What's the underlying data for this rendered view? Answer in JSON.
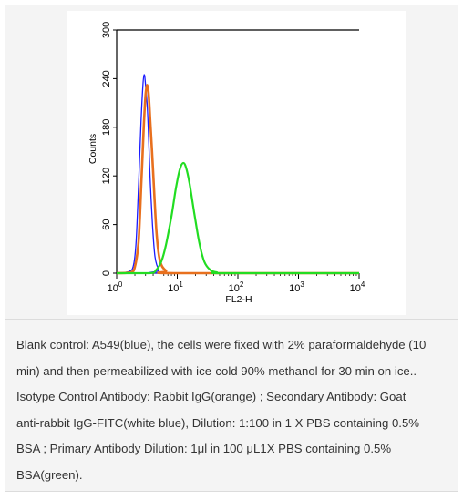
{
  "chart_data": {
    "type": "line",
    "xlabel": "FL2-H",
    "ylabel": "Counts",
    "x_scale": "log",
    "xlim": [
      1,
      10000
    ],
    "ylim": [
      0,
      300
    ],
    "x_ticks": [
      {
        "value": 1,
        "base": "10",
        "exp": "0"
      },
      {
        "value": 10,
        "base": "10",
        "exp": "1"
      },
      {
        "value": 100,
        "base": "10",
        "exp": "2"
      },
      {
        "value": 1000,
        "base": "10",
        "exp": "3"
      },
      {
        "value": 10000,
        "base": "10",
        "exp": "4"
      }
    ],
    "y_ticks": [
      "0",
      "60",
      "120",
      "180",
      "240",
      "300"
    ],
    "series": [
      {
        "color": "#1a1aff",
        "points": [
          [
            1,
            0
          ],
          [
            1.6,
            2
          ],
          [
            1.9,
            10
          ],
          [
            2.1,
            40
          ],
          [
            2.3,
            110
          ],
          [
            2.5,
            180
          ],
          [
            2.7,
            230
          ],
          [
            2.85,
            245
          ],
          [
            3.0,
            232
          ],
          [
            3.2,
            205
          ],
          [
            3.4,
            160
          ],
          [
            3.6,
            110
          ],
          [
            3.9,
            60
          ],
          [
            4.3,
            20
          ],
          [
            5.0,
            4
          ],
          [
            6.5,
            0
          ],
          [
            10000,
            0
          ]
        ]
      },
      {
        "color": "#e8701e",
        "points": [
          [
            1,
            0
          ],
          [
            1.7,
            1
          ],
          [
            2.0,
            8
          ],
          [
            2.3,
            40
          ],
          [
            2.55,
            110
          ],
          [
            2.8,
            180
          ],
          [
            3.0,
            220
          ],
          [
            3.2,
            232
          ],
          [
            3.4,
            218
          ],
          [
            3.6,
            185
          ],
          [
            3.9,
            140
          ],
          [
            4.2,
            95
          ],
          [
            4.6,
            45
          ],
          [
            5.2,
            15
          ],
          [
            6.5,
            3
          ],
          [
            9,
            0
          ],
          [
            10000,
            0
          ]
        ]
      },
      {
        "color": "#22dd22",
        "points": [
          [
            1,
            0
          ],
          [
            3.5,
            0
          ],
          [
            4.5,
            4
          ],
          [
            5.5,
            15
          ],
          [
            6.5,
            35
          ],
          [
            8,
            70
          ],
          [
            9.5,
            105
          ],
          [
            11,
            128
          ],
          [
            12.5,
            136
          ],
          [
            14,
            130
          ],
          [
            16,
            110
          ],
          [
            19,
            75
          ],
          [
            23,
            38
          ],
          [
            28,
            14
          ],
          [
            35,
            4
          ],
          [
            45,
            1
          ],
          [
            60,
            0
          ],
          [
            10000,
            0
          ]
        ]
      }
    ]
  },
  "caption": {
    "lines": [
      "Blank control: A549(blue), the cells were fixed with 2% paraformaldehyde (10",
      "min) and then permeabilized with ice-cold 90% methanol for 30 min on ice..",
      "Isotype Control Antibody: Rabbit IgG(orange) ; Secondary Antibody: Goat",
      "anti-rabbit IgG-FITC(white blue), Dilution: 1:100 in 1 X PBS containing 0.5%",
      "BSA ; Primary Antibody Dilution: 1μl in 100 μL1X PBS containing 0.5%",
      "BSA(green)."
    ]
  }
}
